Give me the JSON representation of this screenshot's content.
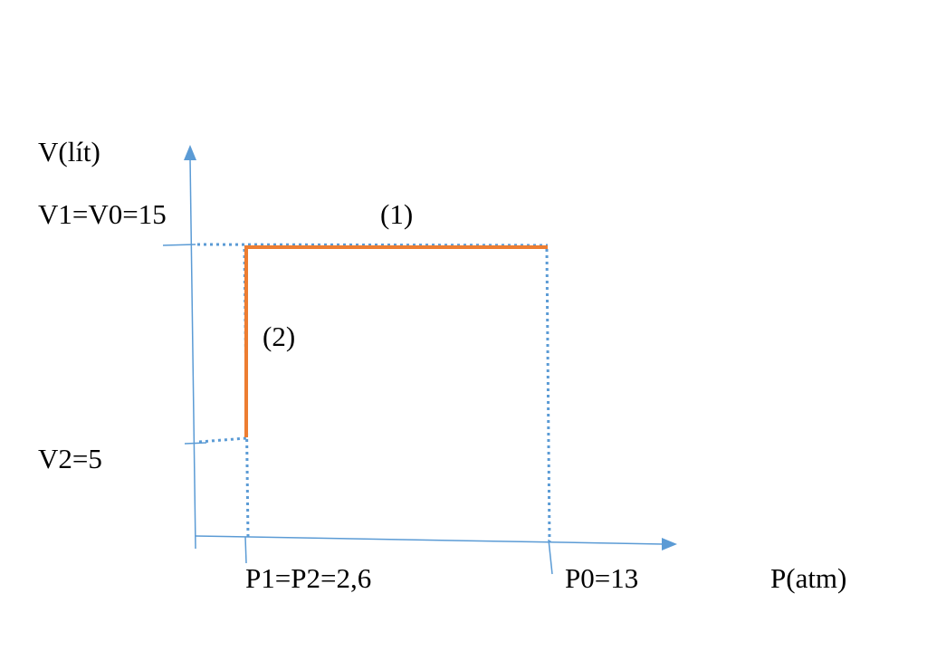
{
  "axes": {
    "y_label": "V(lít)",
    "x_label": "P(atm)"
  },
  "labels": {
    "v_top": "V1=V0=15",
    "v_bottom": "V2=5",
    "p_left": "P1=P2=2,6",
    "p_right": "P0=13"
  },
  "processes": [
    {
      "label": "(1)"
    },
    {
      "label": "(2)"
    }
  ]
}
